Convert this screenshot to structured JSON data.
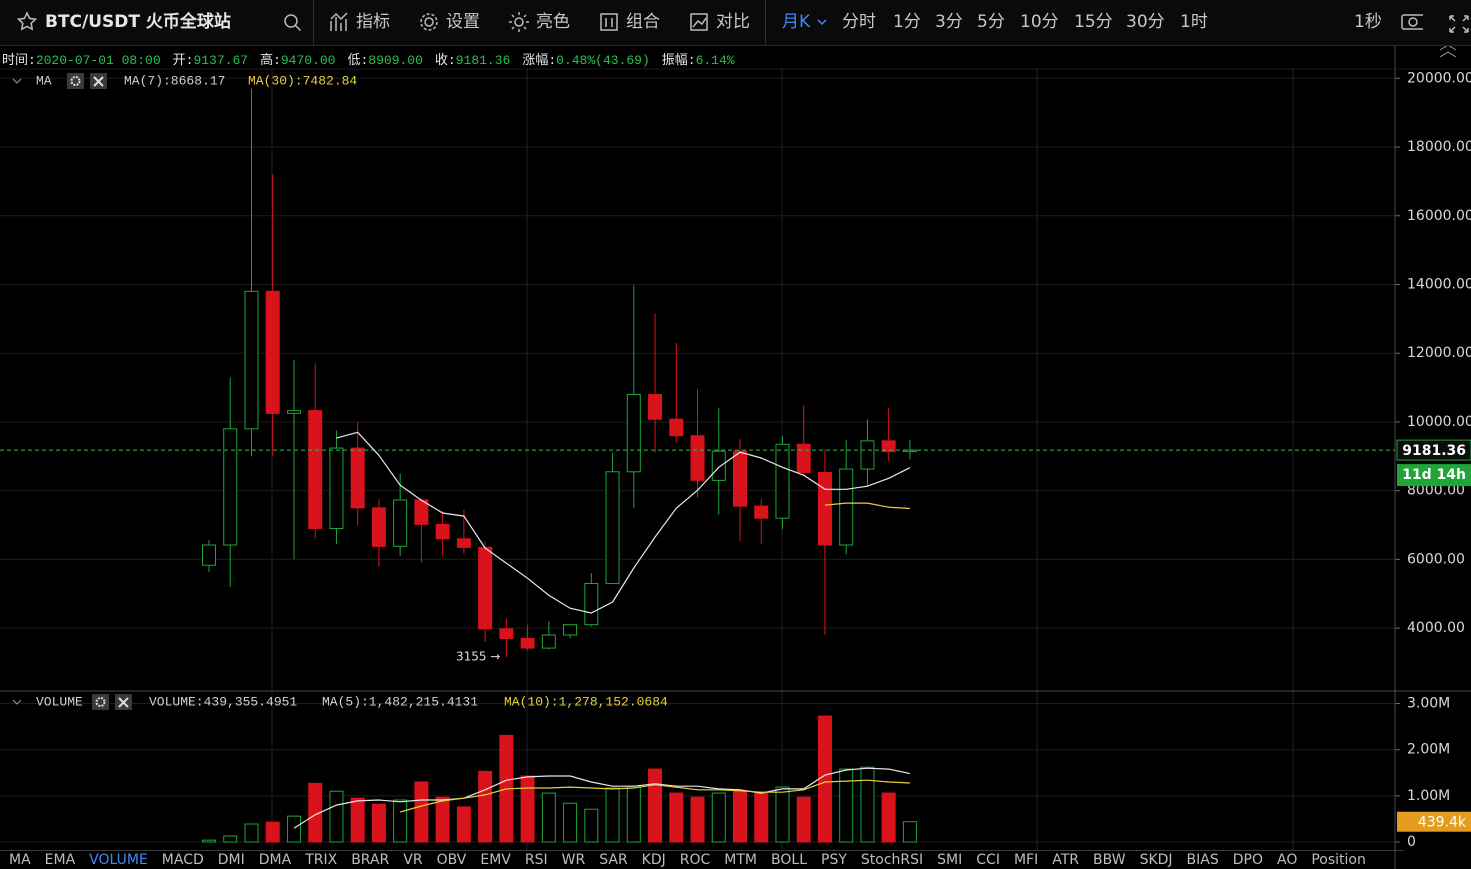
{
  "toolbar": {
    "symbol": "BTC/USDT 火币全球站",
    "tools": [
      "指标",
      "设置",
      "亮色",
      "组合",
      "对比"
    ],
    "periods": [
      "月K",
      "分时",
      "1分",
      "3分",
      "5分",
      "10分",
      "15分",
      "30分",
      "1时"
    ],
    "refresh": "1秒"
  },
  "info_bar": [
    {
      "label": "时间:",
      "value": "2020-07-01 08:00"
    },
    {
      "label": "开:",
      "value": "9137.67"
    },
    {
      "label": "高:",
      "value": "9470.00"
    },
    {
      "label": "低:",
      "value": "8909.00"
    },
    {
      "label": "收:",
      "value": "9181.36"
    },
    {
      "label": "涨幅:",
      "value": "0.48%(43.69)"
    },
    {
      "label": "振幅:",
      "value": "6.14%"
    }
  ],
  "indicator_tabs": [
    "MA",
    "EMA",
    "VOLUME",
    "MACD",
    "DMI",
    "DMA",
    "TRIX",
    "BRAR",
    "VR",
    "OBV",
    "EMV",
    "RSI",
    "WR",
    "SAR",
    "KDJ",
    "ROC",
    "MTM",
    "BOLL",
    "PSY",
    "StochRSI",
    "SMI",
    "CCI",
    "MFI",
    "ATR",
    "BBW",
    "SKDJ",
    "BIAS",
    "DPO",
    "AO",
    "Position"
  ],
  "active_tab": "VOLUME",
  "chart_data": [
    {
      "type": "candlestick",
      "panel_label": "MA",
      "up_color": "#1fa53a",
      "down_color": "#d9131b",
      "open": [
        5830,
        6420,
        9800,
        13800,
        10250,
        10330,
        6900,
        9240,
        7500,
        6380,
        7730,
        7020,
        6600,
        6350,
        3980,
        3700,
        3420,
        3800,
        4100,
        5300,
        8550,
        10800,
        10080,
        9600,
        8300,
        9150,
        7550,
        7200,
        9350,
        8530,
        6420,
        8630,
        9450,
        9137.67
      ],
      "high": [
        6560,
        11300,
        19700,
        17200,
        11800,
        11700,
        9750,
        10000,
        7750,
        8500,
        7780,
        7410,
        7450,
        6520,
        4280,
        4100,
        4200,
        4120,
        5600,
        9100,
        13970,
        13150,
        12300,
        10950,
        10400,
        9500,
        7750,
        9580,
        10500,
        9200,
        9480,
        10080,
        10400,
        9470
      ],
      "low": [
        5630,
        5200,
        9000,
        9000,
        6000,
        6600,
        6450,
        7000,
        5800,
        6100,
        5900,
        6120,
        6170,
        3600,
        3155,
        3350,
        3380,
        3700,
        4050,
        5300,
        7500,
        9100,
        9400,
        7800,
        7300,
        6530,
        6450,
        6880,
        8420,
        3800,
        6150,
        8110,
        8850,
        8909
      ],
      "close": [
        6420,
        9800,
        13800,
        10250,
        10330,
        6900,
        9240,
        7500,
        6380,
        7730,
        7020,
        6600,
        6350,
        3980,
        3700,
        3420,
        3800,
        4100,
        5300,
        8550,
        10800,
        10080,
        9600,
        8300,
        9150,
        7550,
        7200,
        9350,
        8530,
        6420,
        8630,
        9450,
        9137.67,
        9181.36
      ],
      "lines": [
        {
          "label": "MA(7):8668.17",
          "color": "#e8e8e8",
          "values": [
            null,
            null,
            null,
            null,
            null,
            null,
            9530,
            9700,
            9030,
            8160,
            7720,
            7350,
            7260,
            6330,
            5890,
            5450,
            4960,
            4580,
            4440,
            4760,
            5750,
            6650,
            7490,
            8010,
            8680,
            9120,
            8950,
            8680,
            8450,
            8040,
            8040,
            8130,
            8360,
            8668.17
          ]
        },
        {
          "label": "MA(30):7482.84",
          "color": "#e6cf3c",
          "values": [
            null,
            null,
            null,
            null,
            null,
            null,
            null,
            null,
            null,
            null,
            null,
            null,
            null,
            null,
            null,
            null,
            null,
            null,
            null,
            null,
            null,
            null,
            null,
            null,
            null,
            null,
            null,
            null,
            null,
            7580,
            7640,
            7640,
            7520,
            7482.84
          ]
        }
      ],
      "annotation": "3155 →",
      "last_price_label": "9181.36",
      "countdown_label": "11d 14h",
      "ylim": [
        2200,
        20300
      ],
      "yticks": [
        {
          "value": 4000,
          "label": "4000.00"
        },
        {
          "value": 6000,
          "label": "6000.00"
        },
        {
          "value": 8000,
          "label": "8000.00"
        },
        {
          "value": 10000,
          "label": "10000.00"
        },
        {
          "value": 12000,
          "label": "12000.00"
        },
        {
          "value": 14000,
          "label": "14000.00"
        },
        {
          "value": 16000,
          "label": "16000.00"
        },
        {
          "value": 18000,
          "label": "18000.00"
        },
        {
          "value": 20000,
          "label": "20000.00"
        }
      ],
      "grid": true
    },
    {
      "type": "bar",
      "panel_label": "VOLUME",
      "values": [
        40000,
        130000,
        390000,
        430000,
        560000,
        1270000,
        1100000,
        950000,
        820000,
        910000,
        1300000,
        970000,
        760000,
        1530000,
        2310000,
        1430000,
        1060000,
        840000,
        710000,
        1170000,
        1210000,
        1580000,
        1060000,
        970000,
        1060000,
        1100000,
        1060000,
        1190000,
        970000,
        2730000,
        1580000,
        1620000,
        1060000,
        439355.4951
      ],
      "value_label": "VOLUME:439,355.4951",
      "lines": [
        {
          "label": "MA(5):1,482,215.4131",
          "color": "#e8e8e8",
          "values": [
            null,
            null,
            null,
            null,
            300000,
            590000,
            800000,
            890000,
            910000,
            870000,
            910000,
            910000,
            950000,
            1130000,
            1340000,
            1410000,
            1430000,
            1430000,
            1300000,
            1210000,
            1210000,
            1260000,
            1210000,
            1210000,
            1150000,
            1130000,
            1060000,
            1150000,
            1150000,
            1450000,
            1560000,
            1600000,
            1580000,
            1482215.4131
          ]
        },
        {
          "label": "MA(10):1,278,152.0684",
          "color": "#e6cf3c",
          "values": [
            null,
            null,
            null,
            null,
            null,
            null,
            null,
            null,
            null,
            650000,
            780000,
            890000,
            950000,
            1020000,
            1150000,
            1170000,
            1170000,
            1190000,
            1170000,
            1150000,
            1170000,
            1240000,
            1190000,
            1130000,
            1130000,
            1110000,
            1080000,
            1080000,
            1130000,
            1300000,
            1320000,
            1340000,
            1300000,
            1278152.0684
          ]
        }
      ],
      "last_value_label": "439.4k",
      "ylim": [
        0,
        3250000
      ],
      "yticks": [
        0,
        {
          "value": 1000000,
          "label": "1.00M"
        },
        {
          "value": 2000000,
          "label": "2.00M"
        },
        {
          "value": 3000000,
          "label": "3.00M"
        }
      ],
      "grid": true
    }
  ]
}
